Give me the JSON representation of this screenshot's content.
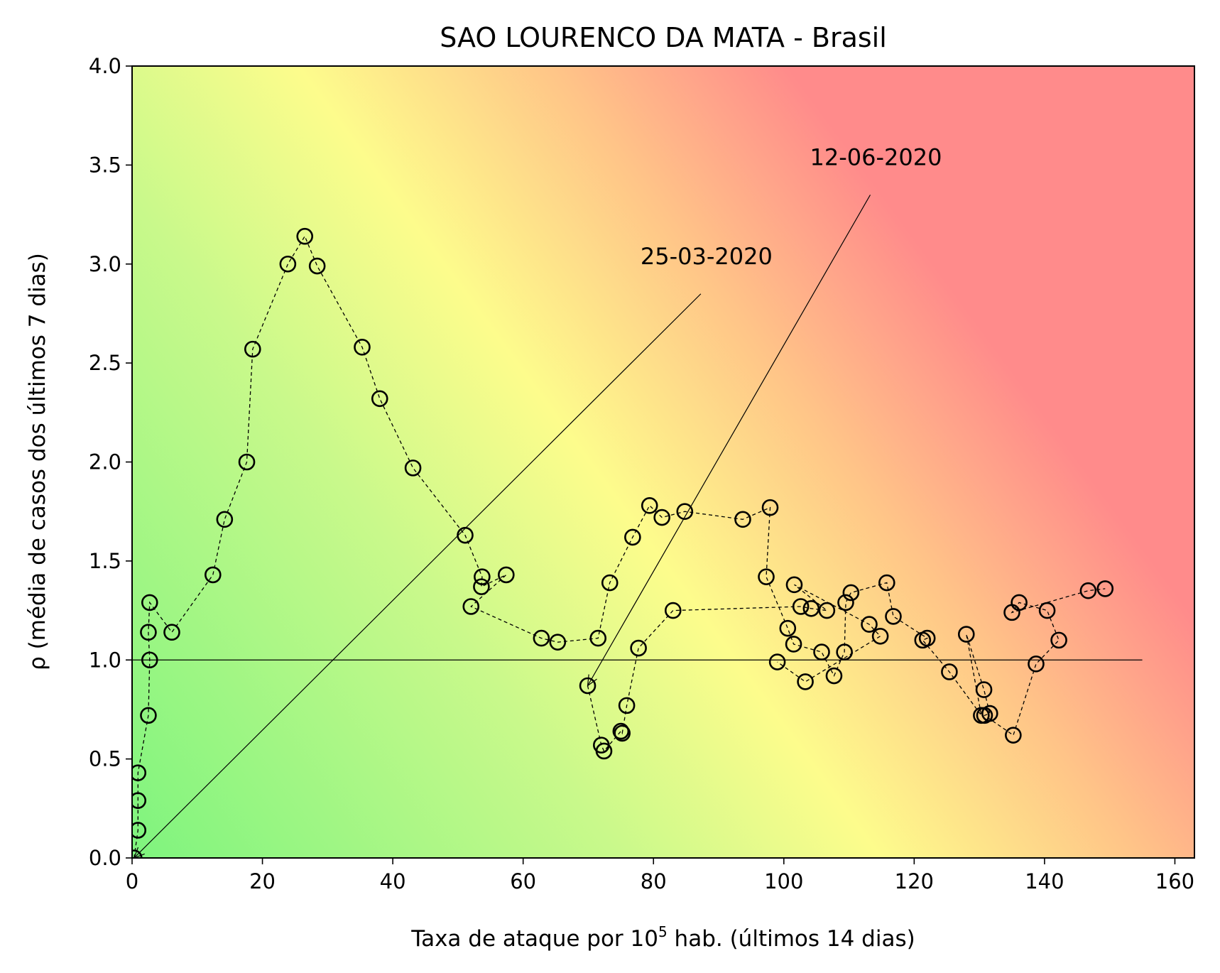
{
  "chart_data": {
    "type": "scatter",
    "title": "SAO LOURENCO DA MATA - Brasil",
    "xlabel": {
      "prefix": "Taxa de ataque por 10",
      "sup": "5",
      "suffix": " hab. (últimos 14 dias)"
    },
    "ylabel": "ρ (média de casos dos últimos 7 dias)",
    "xlim": [
      0,
      163
    ],
    "ylim": [
      0,
      4.0
    ],
    "xticks": [
      "0",
      "20",
      "40",
      "60",
      "80",
      "100",
      "120",
      "140",
      "160"
    ],
    "yticks": [
      "0.0",
      "0.5",
      "1.0",
      "1.5",
      "2.0",
      "2.5",
      "3.0",
      "3.5",
      "4.0"
    ],
    "reference_line": {
      "y": 1.0,
      "x_range": [
        0,
        155
      ]
    },
    "grid": false,
    "background": "gradient green (low) to yellow to red (high risk)",
    "colors": {
      "green": "#7ef47e",
      "yellow": "#fdfc8c",
      "orange": "#ffc488",
      "red": "#ff8b8b"
    },
    "series": [
      {
        "x": [
          0.3,
          0.9,
          0.9,
          0.9,
          2.5,
          2.7,
          2.5,
          2.7,
          6.1,
          12.4,
          14.2,
          17.6,
          18.5,
          23.9,
          26.5,
          28.4,
          35.3,
          38.0,
          43.1,
          51.1,
          53.7,
          53.6,
          57.4,
          52.0,
          62.8,
          65.3,
          71.5,
          73.3,
          76.8,
          79.4,
          81.3,
          84.8,
          93.7,
          97.9,
          97.3,
          100.6,
          101.5,
          105.8,
          107.7,
          109.3,
          109.5,
          110.3,
          115.8,
          116.8,
          122.0,
          121.3,
          125.4,
          130.3,
          128.0,
          130.7,
          131.6,
          130.8,
          135.2,
          138.7,
          142.2,
          140.4,
          136.1,
          135.0,
          146.7,
          149.3
        ],
        "y": [
          0.0,
          0.14,
          0.29,
          0.43,
          0.72,
          1.0,
          1.14,
          1.29,
          1.14,
          1.43,
          1.71,
          2.0,
          2.57,
          3.0,
          3.14,
          2.99,
          2.58,
          2.32,
          1.97,
          1.63,
          1.42,
          1.37,
          1.43,
          1.27,
          1.11,
          1.09,
          1.11,
          1.39,
          1.62,
          1.78,
          1.72,
          1.75,
          1.71,
          1.77,
          1.42,
          1.16,
          1.08,
          1.04,
          0.92,
          1.04,
          1.29,
          1.34,
          1.39,
          1.22,
          1.11,
          1.1,
          0.94,
          0.72,
          1.13,
          0.85,
          0.73,
          0.72,
          0.62,
          0.98,
          1.1,
          1.25,
          1.29,
          1.24,
          1.35,
          1.36
        ]
      },
      {
        "x": [
          69.9,
          72.0,
          72.4,
          75.0,
          75.2,
          75.9,
          77.7,
          83.0,
          102.6,
          104.2,
          106.6,
          101.6,
          113.1,
          114.8,
          103.3,
          99.0
        ],
        "y": [
          0.87,
          0.57,
          0.54,
          0.64,
          0.63,
          0.77,
          1.06,
          1.25,
          1.27,
          1.26,
          1.25,
          1.38,
          1.18,
          1.12,
          0.89,
          0.99
        ]
      }
    ],
    "annotations": [
      {
        "text": "25-03-2020",
        "text_pos": [
          78,
          3.0
        ],
        "point": [
          0.3,
          0.0
        ]
      },
      {
        "text": "12-06-2020",
        "text_pos": [
          104,
          3.5
        ],
        "point": [
          69.9,
          0.87
        ]
      }
    ]
  }
}
